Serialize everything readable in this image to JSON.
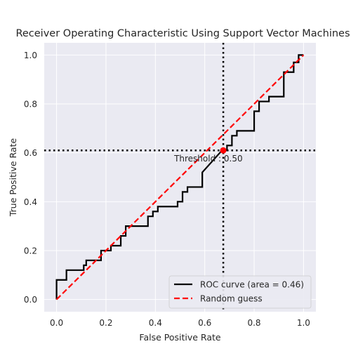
{
  "chart_data": {
    "type": "line",
    "title": "Receiver Operating Characteristic Using Support Vector Machines",
    "xlabel": "False Positive Rate",
    "ylabel": "True Positive Rate",
    "xlim": [
      -0.05,
      1.05
    ],
    "ylim": [
      -0.05,
      1.05
    ],
    "xticks": [
      "0.0",
      "0.2",
      "0.4",
      "0.6",
      "0.8",
      "1.0"
    ],
    "yticks": [
      "0.0",
      "0.2",
      "0.4",
      "0.6",
      "0.8",
      "1.0"
    ],
    "grid": true,
    "legend_position": "lower-right",
    "series": [
      {
        "name": "ROC curve (area = 0.46)",
        "style": "solid",
        "color": "#000000",
        "points": [
          [
            0.0,
            0.0
          ],
          [
            0.0,
            0.08
          ],
          [
            0.04,
            0.08
          ],
          [
            0.04,
            0.12
          ],
          [
            0.11,
            0.12
          ],
          [
            0.11,
            0.14
          ],
          [
            0.12,
            0.14
          ],
          [
            0.12,
            0.16
          ],
          [
            0.18,
            0.16
          ],
          [
            0.18,
            0.2
          ],
          [
            0.22,
            0.2
          ],
          [
            0.22,
            0.22
          ],
          [
            0.26,
            0.22
          ],
          [
            0.26,
            0.26
          ],
          [
            0.28,
            0.26
          ],
          [
            0.28,
            0.3
          ],
          [
            0.37,
            0.3
          ],
          [
            0.37,
            0.34
          ],
          [
            0.39,
            0.34
          ],
          [
            0.39,
            0.36
          ],
          [
            0.41,
            0.36
          ],
          [
            0.41,
            0.38
          ],
          [
            0.49,
            0.38
          ],
          [
            0.49,
            0.4
          ],
          [
            0.51,
            0.4
          ],
          [
            0.51,
            0.44
          ],
          [
            0.53,
            0.44
          ],
          [
            0.53,
            0.46
          ],
          [
            0.59,
            0.46
          ],
          [
            0.59,
            0.52
          ],
          [
            0.67,
            0.61
          ],
          [
            0.69,
            0.61
          ],
          [
            0.69,
            0.63
          ],
          [
            0.71,
            0.63
          ],
          [
            0.71,
            0.67
          ],
          [
            0.73,
            0.67
          ],
          [
            0.73,
            0.69
          ],
          [
            0.8,
            0.69
          ],
          [
            0.8,
            0.77
          ],
          [
            0.82,
            0.77
          ],
          [
            0.82,
            0.81
          ],
          [
            0.86,
            0.81
          ],
          [
            0.86,
            0.83
          ],
          [
            0.92,
            0.83
          ],
          [
            0.92,
            0.93
          ],
          [
            0.96,
            0.93
          ],
          [
            0.96,
            0.97
          ],
          [
            0.98,
            0.97
          ],
          [
            0.98,
            1.0
          ],
          [
            1.0,
            1.0
          ]
        ]
      },
      {
        "name": "Random guess",
        "style": "dashed",
        "color": "#ff0000",
        "points": [
          [
            0.0,
            0.0
          ],
          [
            1.0,
            1.0
          ]
        ]
      }
    ],
    "threshold": {
      "label": "Threshold : 0.50",
      "x": 0.675,
      "y": 0.61,
      "marker_color": "#ff0000"
    }
  }
}
